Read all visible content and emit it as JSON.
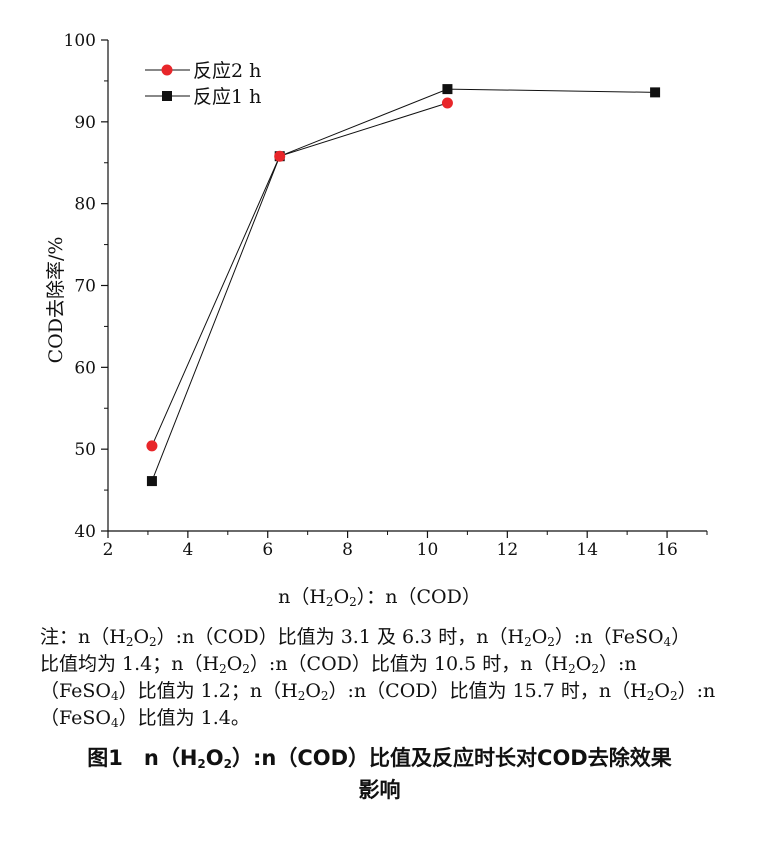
{
  "chart_data": {
    "type": "line",
    "xlim": [
      2,
      17
    ],
    "ylim": [
      40,
      100
    ],
    "xticks": [
      2,
      4,
      6,
      8,
      10,
      12,
      14,
      16
    ],
    "yticks": [
      40,
      50,
      60,
      70,
      80,
      90,
      100
    ],
    "ylabel": "COD去除率/%",
    "xlabel_parts": {
      "n1": "n（H",
      "sub1": "2",
      "o": "O",
      "sub2": "2",
      "rest": "）：n（COD）"
    },
    "legend_position": "top-left",
    "series": [
      {
        "name": "反应2 h",
        "marker": "circle",
        "color": "#e8262a",
        "x": [
          3.1,
          6.3,
          10.5
        ],
        "y": [
          50.4,
          85.8,
          92.3
        ]
      },
      {
        "name": "反应1 h",
        "marker": "square",
        "color": "#111111",
        "x": [
          3.1,
          6.3,
          10.5,
          15.7
        ],
        "y": [
          46.1,
          85.8,
          94.0,
          93.6
        ]
      }
    ]
  },
  "note": {
    "lines": [
      [
        {
          "t": "注：n（H"
        },
        {
          "s": "2"
        },
        {
          "t": "O"
        },
        {
          "s": "2"
        },
        {
          "t": "）:n（COD）比值为 3.1 及 6.3 时，n（H"
        },
        {
          "s": "2"
        },
        {
          "t": "O"
        },
        {
          "s": "2"
        },
        {
          "t": "）:n（FeSO"
        },
        {
          "s": "4"
        },
        {
          "t": "）"
        }
      ],
      [
        {
          "t": "比值均为 1.4；n（H"
        },
        {
          "s": "2"
        },
        {
          "t": "O"
        },
        {
          "s": "2"
        },
        {
          "t": "）:n（COD）比值为 10.5 时，n（H"
        },
        {
          "s": "2"
        },
        {
          "t": "O"
        },
        {
          "s": "2"
        },
        {
          "t": "）:n"
        }
      ],
      [
        {
          "t": "（FeSO"
        },
        {
          "s": "4"
        },
        {
          "t": "）比值为 1.2；n（H"
        },
        {
          "s": "2"
        },
        {
          "t": "O"
        },
        {
          "s": "2"
        },
        {
          "t": "）:n（COD）比值为 15.7 时，n（H"
        },
        {
          "s": "2"
        },
        {
          "t": "O"
        },
        {
          "s": "2"
        },
        {
          "t": "）:n"
        }
      ],
      [
        {
          "t": "（FeSO"
        },
        {
          "s": "4"
        },
        {
          "t": "）比值为 1.4。"
        }
      ]
    ]
  },
  "caption": {
    "line1": [
      {
        "t": "图1　n（H"
      },
      {
        "s": "2"
      },
      {
        "t": "O"
      },
      {
        "s": "2"
      },
      {
        "t": "）:n（COD）比值及反应时长对COD去除效果"
      }
    ],
    "line2": [
      {
        "t": "影响"
      }
    ]
  }
}
